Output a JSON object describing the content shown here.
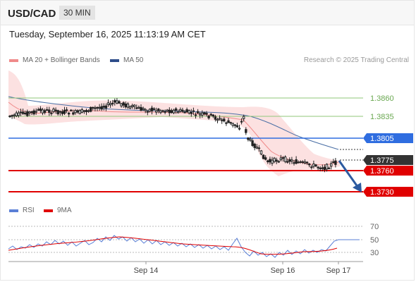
{
  "header": {
    "symbol": "USD/CAD",
    "timeframe": "30 MIN"
  },
  "timestamp": "Tuesday, September 16, 2025 11:13:19 AM CET",
  "legend": {
    "ma20": {
      "label": "MA 20 + Bollinger Bands",
      "color": "#f08a8a"
    },
    "ma50": {
      "label": "MA 50",
      "color": "#2e4d8a"
    },
    "credit": "Research © 2025 Trading Central"
  },
  "levels": [
    {
      "value": "1.3860",
      "kind": "resistance-green",
      "color": "#8fc77a"
    },
    {
      "value": "1.3835",
      "kind": "resistance-green",
      "color": "#8fc77a"
    },
    {
      "value": "1.3805",
      "kind": "pivot-blue",
      "color": "#2f6de0"
    },
    {
      "value": "1.3775",
      "kind": "last-price",
      "color": "#333333"
    },
    {
      "value": "1.3760",
      "kind": "target-red",
      "color": "#e00000"
    },
    {
      "value": "1.3730",
      "kind": "target-red",
      "color": "#e00000"
    }
  ],
  "rsi_legend": {
    "rsi": {
      "label": "RSI",
      "color": "#5a7fd6"
    },
    "ma9": {
      "label": "9MA",
      "color": "#e00000"
    }
  },
  "rsi_axis": [
    "70",
    "50",
    "30"
  ],
  "x_axis": [
    "Sep 14",
    "Sep 16",
    "Sep 17"
  ]
}
